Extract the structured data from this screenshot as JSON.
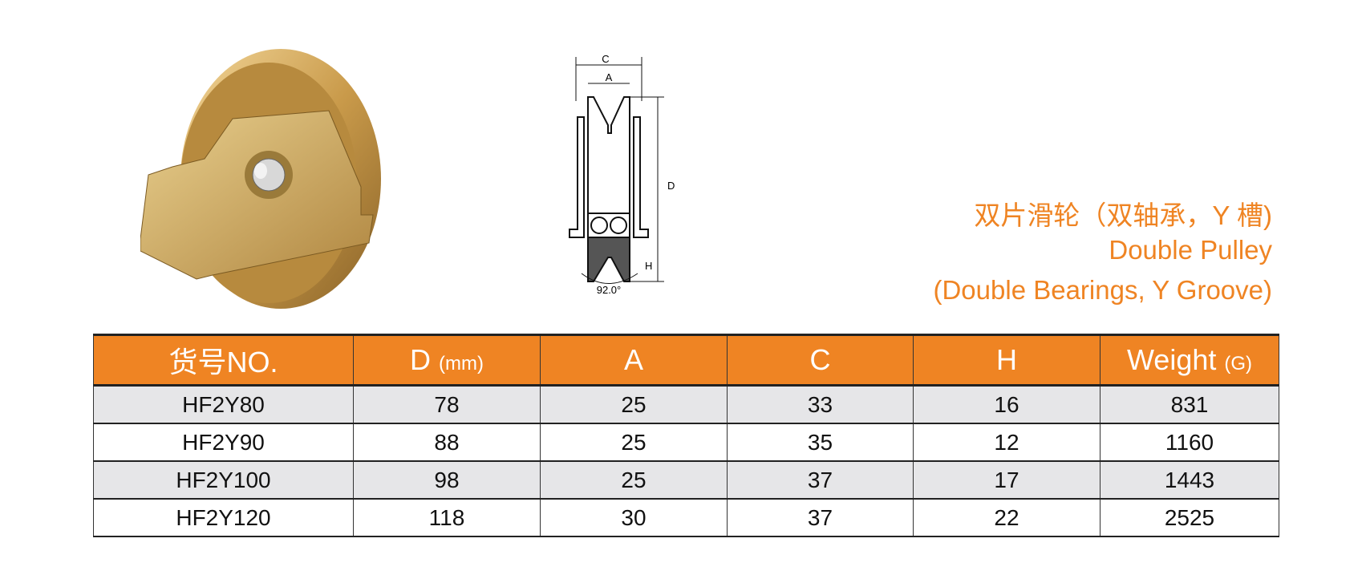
{
  "title": {
    "chinese": "双片滑轮（双轴承，Y 槽)",
    "english": "Double Pulley",
    "subtitle": "(Double  Bearings, Y Groove)"
  },
  "drawing": {
    "label_c": "C",
    "label_a": "A",
    "label_d": "D",
    "label_h": "H",
    "angle": "92.0°"
  },
  "colors": {
    "accent": "#ef8423",
    "row_alt": "#e6e6e8"
  },
  "table": {
    "headers": [
      {
        "main": "货号NO.",
        "unit": ""
      },
      {
        "main": "D ",
        "unit": "(mm)"
      },
      {
        "main": "A",
        "unit": ""
      },
      {
        "main": "C",
        "unit": ""
      },
      {
        "main": "H",
        "unit": ""
      },
      {
        "main": "Weight ",
        "unit": "(G)"
      }
    ],
    "rows": [
      [
        "HF2Y80",
        "78",
        "25",
        "33",
        "16",
        "831"
      ],
      [
        "HF2Y90",
        "88",
        "25",
        "35",
        "12",
        "1160"
      ],
      [
        "HF2Y100",
        "98",
        "25",
        "37",
        "17",
        "1443"
      ],
      [
        "HF2Y120",
        "118",
        "30",
        "37",
        "22",
        "2525"
      ]
    ]
  }
}
